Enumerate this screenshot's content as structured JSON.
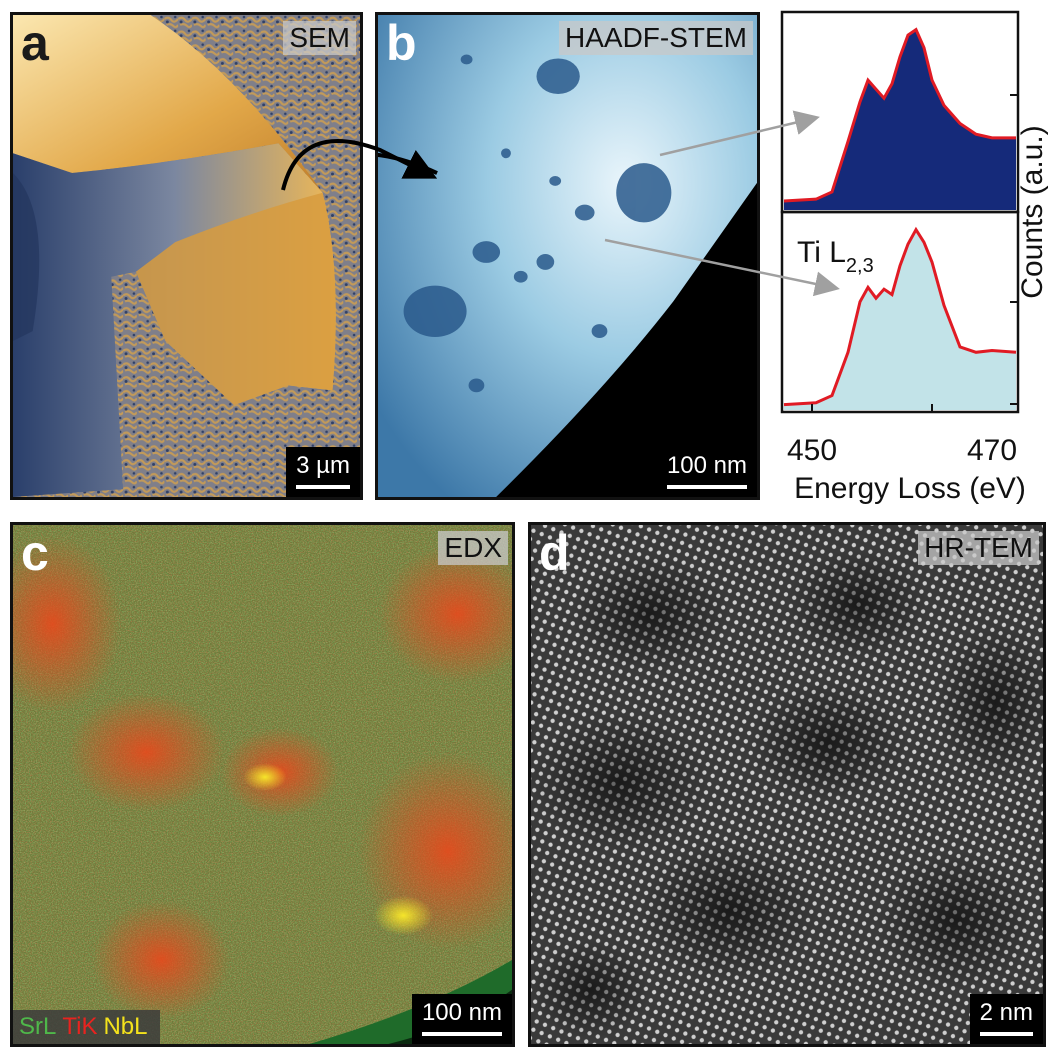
{
  "panels": {
    "a": {
      "letter": "a",
      "tag": "SEM",
      "scale": "3 µm"
    },
    "b": {
      "letter": "b",
      "tag": "HAADF-STEM",
      "scale": "100 nm"
    },
    "c": {
      "letter": "c",
      "tag": "EDX",
      "scale": "100 nm",
      "legend": {
        "sr": "SrL",
        "ti": "TiK",
        "nb": "NbL"
      },
      "colors": {
        "sr": "#4fb84a",
        "ti": "#e8231f",
        "nb": "#f4e21c"
      }
    },
    "d": {
      "letter": "d",
      "tag": "HR-TEM",
      "scale": "2 nm"
    }
  },
  "spectra": {
    "label": "Ti L",
    "label_sub": "2,3",
    "xlabel": "Energy Loss (eV)",
    "ylabel": "Counts (a.u.)",
    "xticks": [
      "450",
      "470"
    ],
    "colors": {
      "top_fill": "#152a7a",
      "bottom_fill": "#c2e3e8",
      "line": "#e01b24",
      "arrow": "#a0a0a0"
    }
  },
  "chart_data": [
    {
      "type": "area",
      "title": "",
      "xlabel": "Energy Loss (eV)",
      "ylabel": "Counts (a.u.)",
      "xlim": [
        446,
        475
      ],
      "x": [
        446,
        450,
        452,
        454,
        455.5,
        456.5,
        457.5,
        458.5,
        459.5,
        460.5,
        461.5,
        462.5,
        463.5,
        464.5,
        466,
        468,
        470,
        472,
        475
      ],
      "y": [
        0.05,
        0.06,
        0.1,
        0.38,
        0.6,
        0.72,
        0.67,
        0.62,
        0.7,
        0.85,
        0.97,
        1.0,
        0.9,
        0.72,
        0.58,
        0.48,
        0.42,
        0.4,
        0.4
      ]
    },
    {
      "type": "area",
      "title": "",
      "xlabel": "Energy Loss (eV)",
      "ylabel": "Counts (a.u.)",
      "xlim": [
        446,
        475
      ],
      "x": [
        446,
        450,
        452,
        454,
        455.5,
        456.5,
        457.5,
        458.5,
        459.5,
        460.5,
        461.5,
        462.5,
        463.5,
        464.5,
        466,
        468,
        470,
        472,
        475
      ],
      "y": [
        0.03,
        0.04,
        0.08,
        0.32,
        0.6,
        0.68,
        0.62,
        0.67,
        0.64,
        0.8,
        0.92,
        1.0,
        0.93,
        0.82,
        0.58,
        0.35,
        0.32,
        0.33,
        0.32
      ]
    }
  ]
}
